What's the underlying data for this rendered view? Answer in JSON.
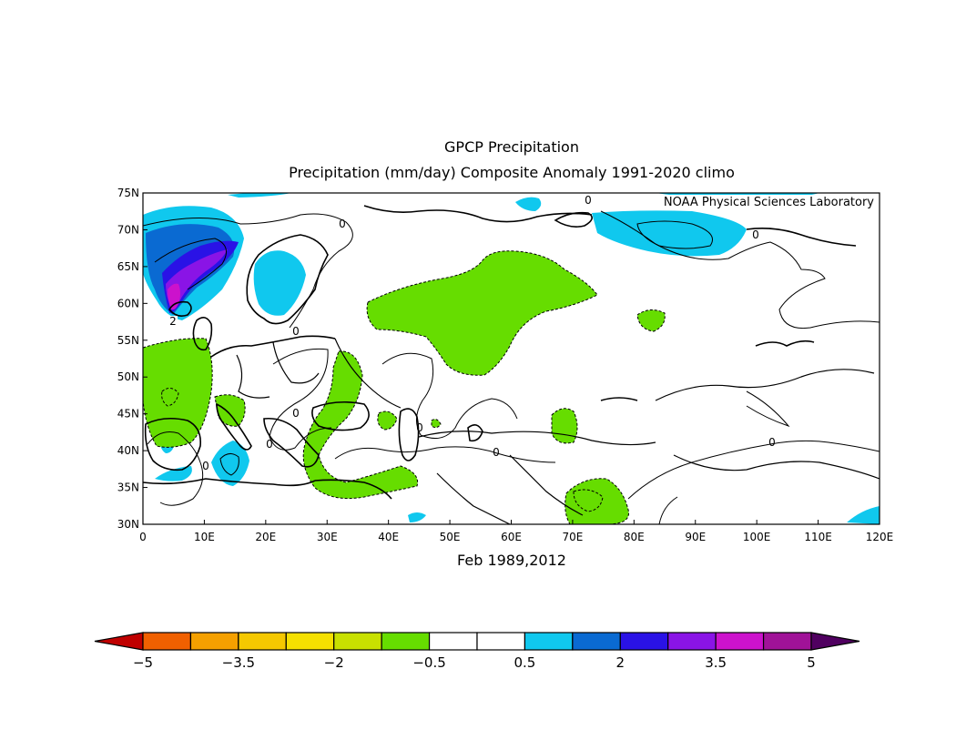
{
  "title": "GPCP Precipitation",
  "subtitle": "Precipitation (mm/day) Composite Anomaly 1991-2020 climo",
  "credit": "NOAA Physical Sciences Laboratory",
  "period_label": "Feb 1989,2012",
  "map": {
    "projection": "cylindrical equidistant",
    "lon_range": [
      0,
      120
    ],
    "lat_range": [
      30,
      75
    ],
    "lon_ticks": [
      "0",
      "10E",
      "20E",
      "30E",
      "40E",
      "50E",
      "60E",
      "70E",
      "80E",
      "90E",
      "100E",
      "110E",
      "120E"
    ],
    "lat_ticks": [
      "30N",
      "35N",
      "40N",
      "45N",
      "50N",
      "55N",
      "60N",
      "65N",
      "70N",
      "75N"
    ],
    "contour_labels": [
      "0",
      "0",
      "0",
      "0",
      "0",
      "0",
      "0",
      "0",
      "0",
      "0",
      "2"
    ]
  },
  "colorbar": {
    "labels": [
      "-5",
      "-3.5",
      "-2",
      "-0.5",
      "0.5",
      "2",
      "3.5",
      "5"
    ],
    "colors": {
      "below": "#c00000",
      "bins": [
        "#f06000",
        "#f5a000",
        "#f5c800",
        "#f5e000",
        "#c8e000",
        "#66dd00",
        "#ffffff",
        "#ffffff",
        "#10c8ee",
        "#0a6ad2",
        "#2a12e6",
        "#8a14e6",
        "#cc12cc",
        "#a01298"
      ],
      "above": "#500060"
    }
  },
  "anomaly_colors": {
    "dry_light": "#66dd00",
    "wet_light": "#10c8ee",
    "wet_medium": "#0a6ad2",
    "wet_strong": "#2a12e6",
    "wet_stronger": "#8a14e6",
    "wet_extreme": "#cc12cc"
  }
}
